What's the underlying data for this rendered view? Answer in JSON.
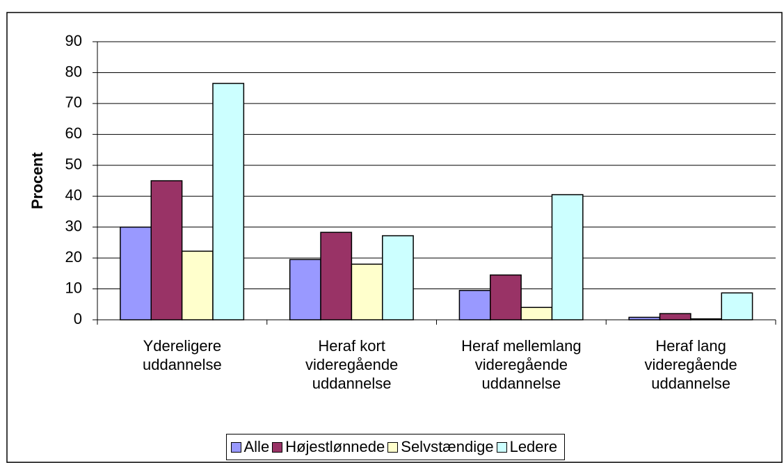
{
  "chart_data": {
    "type": "bar",
    "y_label": "Procent",
    "categories": [
      "Ydereligere\nuddannelse",
      "Heraf kort\nvideregående\nuddannelse",
      "Heraf mellemlang\nvideregående\nuddannelse",
      "Heraf lang\nvideregående\nuddannelse"
    ],
    "series": [
      {
        "name": "Alle",
        "color": "#9999ff",
        "values": [
          30,
          19.5,
          9.5,
          0.8
        ]
      },
      {
        "name": "Højestlønnede",
        "color": "#993366",
        "values": [
          45,
          28.3,
          14.5,
          2
        ]
      },
      {
        "name": "Selvstændige",
        "color": "#ffffcc",
        "values": [
          22.2,
          18,
          4,
          0.3
        ]
      },
      {
        "name": "Ledere",
        "color": "#ccffff",
        "values": [
          76.5,
          27.2,
          40.5,
          8.7
        ]
      }
    ],
    "ylim": [
      0,
      90
    ],
    "yticks": [
      0,
      10,
      20,
      30,
      40,
      50,
      60,
      70,
      80,
      90
    ],
    "grid": true,
    "legend": "bottom"
  }
}
